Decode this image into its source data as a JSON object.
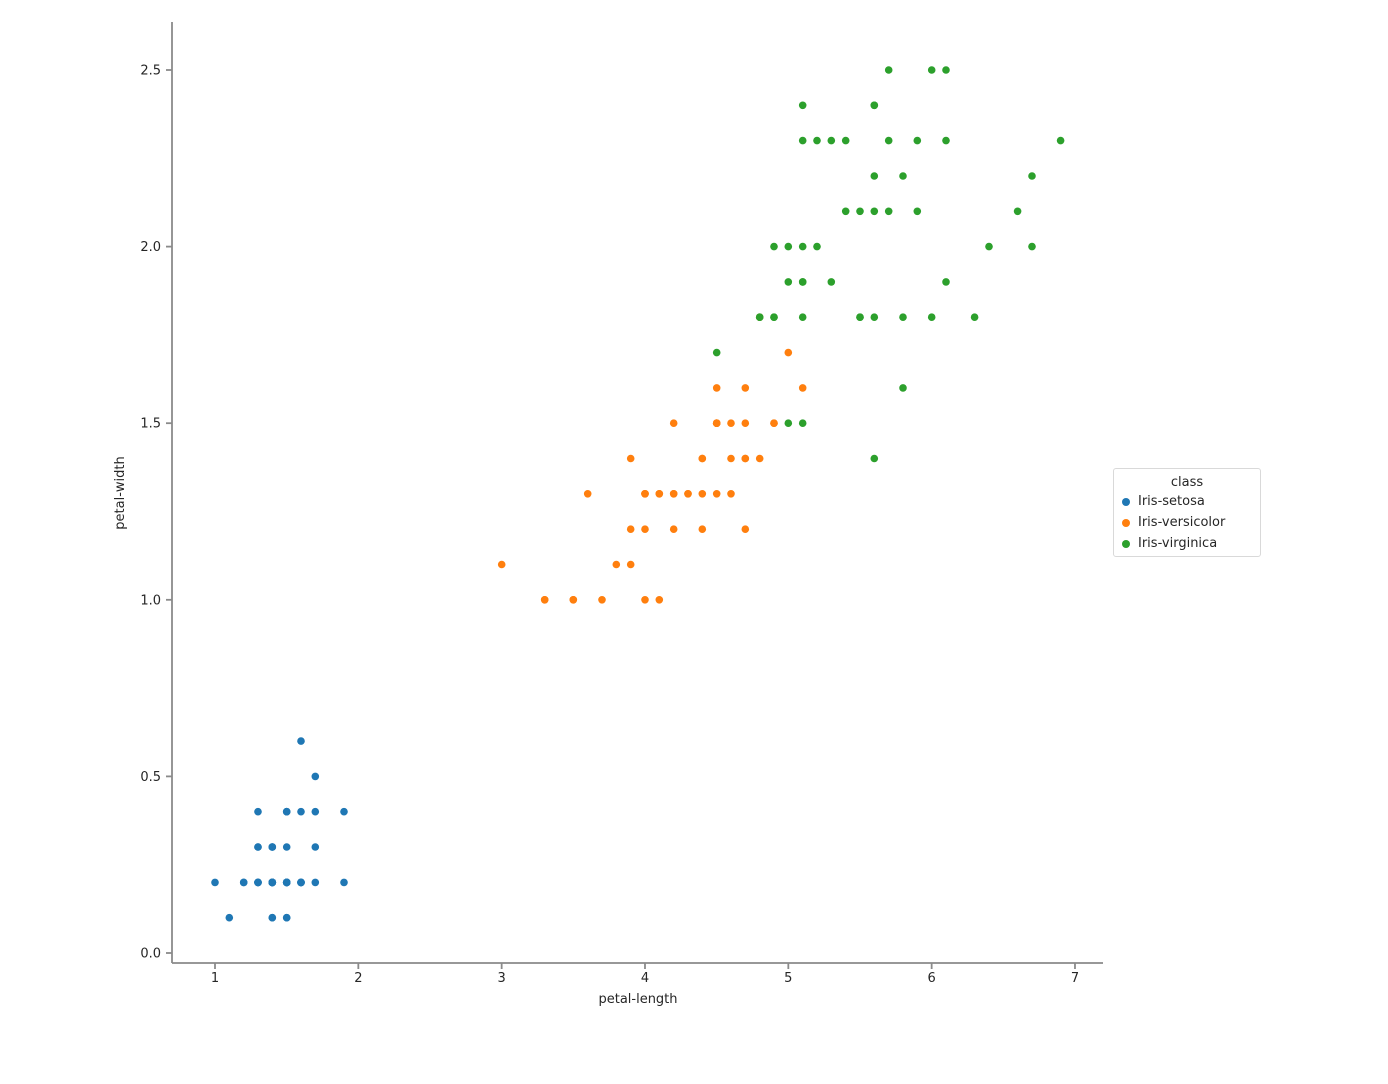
{
  "chart_data": {
    "type": "scatter",
    "title": "",
    "xlabel": "petal-length",
    "ylabel": "petal-width",
    "xlim": [
      0.7,
      7.2
    ],
    "ylim": [
      -0.05,
      2.65
    ],
    "grid": false,
    "x_ticks": [
      1,
      2,
      3,
      4,
      5,
      6,
      7
    ],
    "x_tick_labels": [
      "1",
      "2",
      "3",
      "4",
      "5",
      "6",
      "7"
    ],
    "y_ticks": [
      0.0,
      0.5,
      1.0,
      1.5,
      2.0,
      2.5
    ],
    "y_tick_labels": [
      "0.0",
      "0.5",
      "1.0",
      "1.5",
      "2.0",
      "2.5"
    ],
    "legend_position": "right of axes, outside",
    "series": [
      {
        "name": "Iris-setosa",
        "color": "#1f77b4",
        "points": [
          [
            1.4,
            0.2
          ],
          [
            1.4,
            0.2
          ],
          [
            1.3,
            0.2
          ],
          [
            1.5,
            0.2
          ],
          [
            1.4,
            0.2
          ],
          [
            1.7,
            0.4
          ],
          [
            1.4,
            0.3
          ],
          [
            1.5,
            0.2
          ],
          [
            1.4,
            0.2
          ],
          [
            1.5,
            0.1
          ],
          [
            1.5,
            0.2
          ],
          [
            1.6,
            0.2
          ],
          [
            1.4,
            0.1
          ],
          [
            1.1,
            0.1
          ],
          [
            1.2,
            0.2
          ],
          [
            1.5,
            0.4
          ],
          [
            1.3,
            0.4
          ],
          [
            1.4,
            0.3
          ],
          [
            1.7,
            0.3
          ],
          [
            1.5,
            0.3
          ],
          [
            1.7,
            0.2
          ],
          [
            1.5,
            0.4
          ],
          [
            1.0,
            0.2
          ],
          [
            1.7,
            0.5
          ],
          [
            1.9,
            0.2
          ],
          [
            1.6,
            0.2
          ],
          [
            1.6,
            0.4
          ],
          [
            1.5,
            0.2
          ],
          [
            1.4,
            0.2
          ],
          [
            1.6,
            0.2
          ],
          [
            1.6,
            0.2
          ],
          [
            1.5,
            0.4
          ],
          [
            1.5,
            0.1
          ],
          [
            1.4,
            0.2
          ],
          [
            1.5,
            0.2
          ],
          [
            1.2,
            0.2
          ],
          [
            1.3,
            0.2
          ],
          [
            1.4,
            0.1
          ],
          [
            1.3,
            0.2
          ],
          [
            1.5,
            0.2
          ],
          [
            1.3,
            0.3
          ],
          [
            1.3,
            0.3
          ],
          [
            1.3,
            0.2
          ],
          [
            1.6,
            0.6
          ],
          [
            1.9,
            0.4
          ],
          [
            1.4,
            0.3
          ],
          [
            1.6,
            0.2
          ],
          [
            1.4,
            0.2
          ],
          [
            1.5,
            0.2
          ],
          [
            1.4,
            0.2
          ]
        ]
      },
      {
        "name": "Iris-versicolor",
        "color": "#ff7f0e",
        "points": [
          [
            4.7,
            1.4
          ],
          [
            4.5,
            1.5
          ],
          [
            4.9,
            1.5
          ],
          [
            4.0,
            1.3
          ],
          [
            4.6,
            1.5
          ],
          [
            4.5,
            1.3
          ],
          [
            4.7,
            1.6
          ],
          [
            3.3,
            1.0
          ],
          [
            4.6,
            1.3
          ],
          [
            3.9,
            1.4
          ],
          [
            3.5,
            1.0
          ],
          [
            4.2,
            1.5
          ],
          [
            4.0,
            1.0
          ],
          [
            4.7,
            1.4
          ],
          [
            3.6,
            1.3
          ],
          [
            4.4,
            1.4
          ],
          [
            4.5,
            1.5
          ],
          [
            4.1,
            1.0
          ],
          [
            4.5,
            1.5
          ],
          [
            3.9,
            1.1
          ],
          [
            4.8,
            1.8
          ],
          [
            4.0,
            1.3
          ],
          [
            4.9,
            1.5
          ],
          [
            4.7,
            1.2
          ],
          [
            4.3,
            1.3
          ],
          [
            4.4,
            1.4
          ],
          [
            4.8,
            1.4
          ],
          [
            5.0,
            1.7
          ],
          [
            4.5,
            1.5
          ],
          [
            3.5,
            1.0
          ],
          [
            3.8,
            1.1
          ],
          [
            3.7,
            1.0
          ],
          [
            3.9,
            1.2
          ],
          [
            5.1,
            1.6
          ],
          [
            4.5,
            1.6
          ],
          [
            4.5,
            1.5
          ],
          [
            4.7,
            1.5
          ],
          [
            4.4,
            1.3
          ],
          [
            4.1,
            1.3
          ],
          [
            4.0,
            1.3
          ],
          [
            4.4,
            1.2
          ],
          [
            4.6,
            1.4
          ],
          [
            4.0,
            1.2
          ],
          [
            3.3,
            1.0
          ],
          [
            4.2,
            1.3
          ],
          [
            4.2,
            1.2
          ],
          [
            4.2,
            1.3
          ],
          [
            4.3,
            1.3
          ],
          [
            3.0,
            1.1
          ],
          [
            4.1,
            1.3
          ]
        ]
      },
      {
        "name": "Iris-virginica",
        "color": "#2ca02c",
        "points": [
          [
            6.0,
            2.5
          ],
          [
            5.1,
            1.9
          ],
          [
            5.9,
            2.1
          ],
          [
            5.6,
            1.8
          ],
          [
            5.8,
            2.2
          ],
          [
            6.6,
            2.1
          ],
          [
            4.5,
            1.7
          ],
          [
            6.3,
            1.8
          ],
          [
            5.8,
            1.8
          ],
          [
            6.1,
            2.5
          ],
          [
            5.1,
            2.0
          ],
          [
            5.3,
            1.9
          ],
          [
            5.5,
            2.1
          ],
          [
            5.0,
            2.0
          ],
          [
            5.1,
            2.4
          ],
          [
            5.3,
            2.3
          ],
          [
            5.5,
            1.8
          ],
          [
            6.7,
            2.2
          ],
          [
            6.9,
            2.3
          ],
          [
            5.0,
            1.5
          ],
          [
            5.7,
            2.3
          ],
          [
            4.9,
            2.0
          ],
          [
            6.7,
            2.0
          ],
          [
            4.9,
            1.8
          ],
          [
            5.7,
            2.1
          ],
          [
            6.0,
            1.8
          ],
          [
            4.8,
            1.8
          ],
          [
            4.9,
            1.8
          ],
          [
            5.6,
            2.1
          ],
          [
            5.8,
            1.6
          ],
          [
            6.1,
            1.9
          ],
          [
            6.4,
            2.0
          ],
          [
            5.6,
            2.2
          ],
          [
            5.1,
            1.5
          ],
          [
            5.6,
            1.4
          ],
          [
            6.1,
            2.3
          ],
          [
            5.6,
            2.4
          ],
          [
            5.5,
            1.8
          ],
          [
            4.8,
            1.8
          ],
          [
            5.4,
            2.1
          ],
          [
            5.6,
            2.4
          ],
          [
            5.1,
            2.3
          ],
          [
            5.1,
            1.9
          ],
          [
            5.9,
            2.3
          ],
          [
            5.7,
            2.5
          ],
          [
            5.2,
            2.3
          ],
          [
            5.0,
            1.9
          ],
          [
            5.2,
            2.0
          ],
          [
            5.4,
            2.3
          ],
          [
            5.1,
            1.8
          ]
        ]
      }
    ]
  },
  "legend": {
    "title": "class",
    "items": [
      {
        "label": "Iris-setosa",
        "color": "#1f77b4"
      },
      {
        "label": "Iris-versicolor",
        "color": "#ff7f0e"
      },
      {
        "label": "Iris-virginica",
        "color": "#2ca02c"
      }
    ]
  },
  "style": {
    "spine_color": "#8a8a8a",
    "tick_color": "#8a8a8a",
    "text_color": "#262626",
    "marker_radius": 3.8
  }
}
